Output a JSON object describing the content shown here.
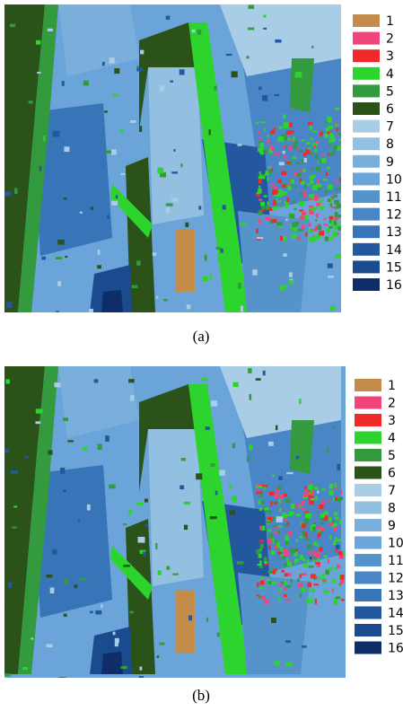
{
  "panels": [
    {
      "caption": "(a)",
      "legend": [
        {
          "label": "1",
          "color": "#c48c4a"
        },
        {
          "label": "2",
          "color": "#f0457a"
        },
        {
          "label": "3",
          "color": "#f02a28"
        },
        {
          "label": "4",
          "color": "#2ed42e"
        },
        {
          "label": "5",
          "color": "#339a3e"
        },
        {
          "label": "6",
          "color": "#2a5219"
        },
        {
          "label": "7",
          "color": "#a9cde6"
        },
        {
          "label": "8",
          "color": "#93bfe0"
        },
        {
          "label": "9",
          "color": "#7aafdc"
        },
        {
          "label": "10",
          "color": "#6aa4d8"
        },
        {
          "label": "11",
          "color": "#5693cb"
        },
        {
          "label": "12",
          "color": "#4a86c5"
        },
        {
          "label": "13",
          "color": "#3874b8"
        },
        {
          "label": "14",
          "color": "#24589e"
        },
        {
          "label": "15",
          "color": "#1a4b8f"
        },
        {
          "label": "16",
          "color": "#0f2d66"
        }
      ]
    },
    {
      "caption": "(b)",
      "legend": [
        {
          "label": "1",
          "color": "#c48c4a"
        },
        {
          "label": "2",
          "color": "#f0457a"
        },
        {
          "label": "3",
          "color": "#f02a28"
        },
        {
          "label": "4",
          "color": "#2ed42e"
        },
        {
          "label": "5",
          "color": "#339a3e"
        },
        {
          "label": "6",
          "color": "#2a5219"
        },
        {
          "label": "7",
          "color": "#a9cde6"
        },
        {
          "label": "8",
          "color": "#93bfe0"
        },
        {
          "label": "9",
          "color": "#7aafdc"
        },
        {
          "label": "10",
          "color": "#6aa4d8"
        },
        {
          "label": "11",
          "color": "#5693cb"
        },
        {
          "label": "12",
          "color": "#4a86c5"
        },
        {
          "label": "13",
          "color": "#3874b8"
        },
        {
          "label": "14",
          "color": "#24589e"
        },
        {
          "label": "15",
          "color": "#1a4b8f"
        },
        {
          "label": "16",
          "color": "#0f2d66"
        }
      ]
    }
  ]
}
